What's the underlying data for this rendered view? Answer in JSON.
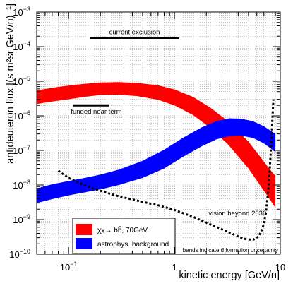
{
  "chart_data": {
    "type": "line",
    "x_scale": "log",
    "y_scale": "log",
    "xlim": [
      0.05,
      10
    ],
    "ylim": [
      1e-10,
      0.001
    ],
    "grid": true,
    "xlabel": "kinetic energy [GeV/n]",
    "ylabel": "antideuteron flux [(s m²sr GeV/n)⁻¹]",
    "x_ticks": [
      {
        "value": 0.1,
        "base": "10",
        "exp": "−1"
      },
      {
        "value": 1,
        "base": "1",
        "exp": ""
      },
      {
        "value": 10,
        "base": "10",
        "exp": ""
      }
    ],
    "y_ticks": [
      {
        "value": 1e-10,
        "base": "10",
        "exp": "−10"
      },
      {
        "value": 1e-09,
        "base": "10",
        "exp": "−9"
      },
      {
        "value": 1e-08,
        "base": "10",
        "exp": "−8"
      },
      {
        "value": 1e-07,
        "base": "10",
        "exp": "−7"
      },
      {
        "value": 1e-06,
        "base": "10",
        "exp": "−6"
      },
      {
        "value": 1e-05,
        "base": "10",
        "exp": "−5"
      },
      {
        "value": 0.0001,
        "base": "10",
        "exp": "−4"
      },
      {
        "value": 0.001,
        "base": "10",
        "exp": "−3"
      }
    ],
    "bands": [
      {
        "name": "χχ→ bb̄, 70GeV",
        "color": "#ff0000",
        "x": [
          0.05,
          0.07,
          0.1,
          0.14,
          0.2,
          0.3,
          0.45,
          0.7,
          1.0,
          1.5,
          2.2,
          3.2,
          5.0,
          7.5,
          9.0
        ],
        "lower": [
          2.2e-06,
          2.6e-06,
          3e-06,
          3.5e-06,
          4e-06,
          4.1e-06,
          3.7e-06,
          2.9e-06,
          2e-06,
          1.05e-06,
          4.4e-07,
          1.5e-07,
          3e-08,
          5e-09,
          2.2e-09
        ],
        "upper": [
          5.4e-06,
          6.5e-06,
          7.5e-06,
          8.4e-06,
          9.2e-06,
          9.4e-06,
          8.9e-06,
          7.6e-06,
          5.8e-06,
          3.5e-06,
          1.7e-06,
          7e-07,
          1.8e-07,
          3.6e-08,
          1.8e-08
        ]
      },
      {
        "name": "astrophys. background",
        "color": "#0000ff",
        "x": [
          0.05,
          0.07,
          0.1,
          0.15,
          0.2,
          0.3,
          0.5,
          0.8,
          1.2,
          1.8,
          2.5,
          3.3,
          4.2,
          5.5,
          7.0,
          9.0
        ],
        "lower": [
          3e-09,
          3.9e-09,
          5e-09,
          6.3e-09,
          7.5e-09,
          1e-08,
          1.6e-08,
          3e-08,
          6.5e-08,
          1.3e-07,
          2.1e-07,
          2.6e-07,
          2.7e-07,
          2.3e-07,
          1.6e-07,
          9e-08
        ],
        "upper": [
          8e-09,
          1.05e-08,
          1.3e-08,
          1.65e-08,
          2e-08,
          2.8e-08,
          5e-08,
          1.05e-07,
          2.3e-07,
          4.6e-07,
          7e-07,
          8.5e-07,
          8.3e-07,
          7e-07,
          5e-07,
          3e-07
        ]
      }
    ],
    "sensitivity_lines": [
      {
        "label": "current exclusion",
        "x": [
          0.16,
          1.1
        ],
        "y": 0.00018
      },
      {
        "label": "funded near term",
        "x": [
          0.11,
          0.24
        ],
        "y": 2e-06
      }
    ],
    "projection": {
      "label": "vision beyond 2030",
      "x": [
        0.08,
        0.1,
        0.13,
        0.17,
        0.22,
        0.3,
        0.45,
        0.7,
        1.0,
        1.5,
        2.2,
        3.2,
        4.5,
        5.5,
        6.2,
        6.8,
        7.3,
        7.8,
        8.2,
        8.6
      ],
      "y": [
        2.6e-08,
        1.6e-08,
        1.1e-08,
        8e-09,
        6.2e-09,
        4.7e-09,
        3.5e-09,
        2.6e-09,
        1.9e-09,
        1.2e-09,
        7.2e-10,
        4.4e-10,
        2.8e-10,
        2.6e-10,
        3.2e-10,
        5.5e-10,
        1.5e-09,
        1e-08,
        1.5e-07,
        3e-06
      ]
    },
    "footnote": "bands indicate d̄ formation uncertainty",
    "legend": {
      "placement": "bottom-left",
      "entries": [
        {
          "label": "χχ→ bb̄, 70GeV",
          "color": "#ff0000"
        },
        {
          "label": "astrophys. background",
          "color": "#0000ff"
        }
      ]
    }
  }
}
